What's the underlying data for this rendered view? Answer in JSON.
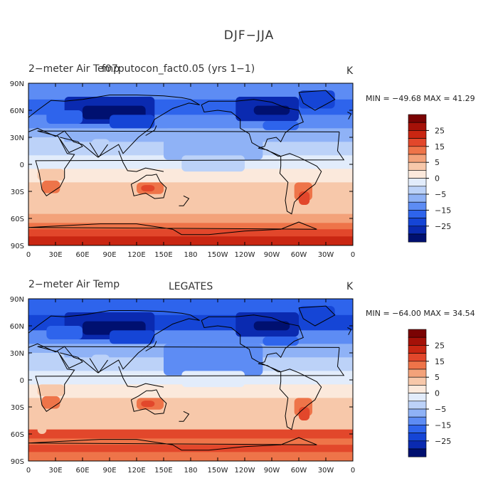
{
  "main_title": "DJF−JJA",
  "colors": {
    "scale": [
      "#001070",
      "#0a2ab0",
      "#1545d6",
      "#2e64ec",
      "#5d8cf4",
      "#8fb2f6",
      "#bcd2f8",
      "#e2ecfb",
      "#fbe9dc",
      "#f7c8aa",
      "#f3a27a",
      "#ee7449",
      "#e2472b",
      "#c92612",
      "#a51108",
      "#7a0303"
    ],
    "land_outline": "#000000"
  },
  "panels": [
    {
      "name": "model",
      "title_left": "2−meter Air Temp",
      "title_center": "f07putocon_fact0.05 (yrs 1−1)",
      "units": "K",
      "min_max_text": "MIN = −49.68 MAX =  41.29",
      "min_max": {
        "min": -49.68,
        "max": 41.29
      }
    },
    {
      "name": "observed",
      "title_left": "2−meter Air Temp",
      "title_center": "LEGATES",
      "units": "K",
      "min_max_text": "MIN = −64.00 MAX =  34.54",
      "min_max": {
        "min": -64.0,
        "max": 34.54
      }
    }
  ],
  "axes": {
    "y_tick_labels": [
      "90N",
      "60N",
      "30N",
      "0",
      "30S",
      "60S",
      "90S"
    ],
    "x_tick_labels": [
      "0",
      "30E",
      "60E",
      "90E",
      "120E",
      "150E",
      "180",
      "150W",
      "120W",
      "90W",
      "60W",
      "30W",
      "0"
    ]
  },
  "colorbar": {
    "levels": [
      -35,
      -30,
      -25,
      -20,
      -15,
      -10,
      -5,
      -2,
      0,
      2,
      5,
      10,
      15,
      20,
      25,
      30,
      35
    ],
    "labels": [
      "25",
      "15",
      "5",
      "0",
      "−5",
      "−15",
      "−25"
    ],
    "label_values": [
      25,
      15,
      5,
      0,
      -5,
      -15,
      -25
    ]
  }
}
